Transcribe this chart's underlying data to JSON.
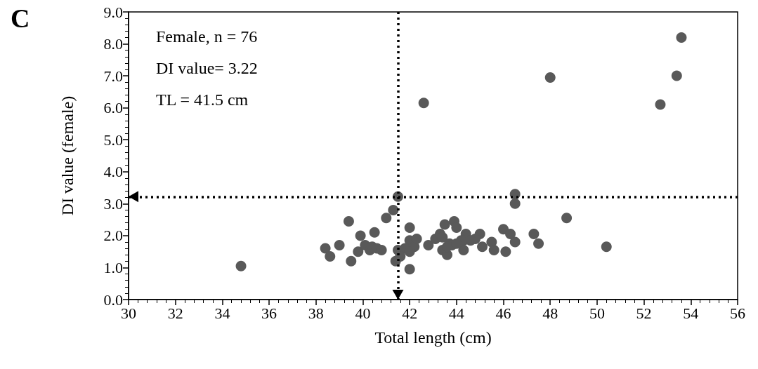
{
  "chart_data": {
    "type": "scatter",
    "title": "C",
    "xlabel": "Total length (cm)",
    "ylabel": "DI value (female)",
    "annotations": [
      "Female, n = 76",
      "DI value= 3.22",
      "TL = 41.5 cm"
    ],
    "x": [
      34.8,
      38.4,
      38.6,
      39.0,
      39.4,
      39.5,
      39.8,
      39.9,
      40.1,
      40.3,
      40.4,
      40.5,
      40.6,
      40.8,
      41.0,
      41.3,
      41.5,
      41.4,
      41.5,
      42.0,
      42.0,
      42.0,
      42.2,
      42.3,
      42.8,
      43.1,
      43.3,
      43.5,
      43.4,
      43.6,
      43.7,
      43.9,
      44.0,
      43.8,
      44.3,
      44.4,
      44.3,
      45.0,
      44.8,
      44.6,
      45.1,
      45.5,
      45.6,
      46.0,
      46.3,
      46.1,
      46.5,
      46.5,
      46.5,
      47.3,
      47.5,
      48.7,
      50.4,
      42.6,
      48.0,
      52.7,
      53.4,
      53.6,
      44.2,
      43.4,
      41.8,
      43.6,
      44.0,
      42.0,
      41.6
    ],
    "values": [
      1.05,
      1.6,
      1.35,
      1.7,
      2.45,
      1.2,
      1.5,
      2.0,
      1.7,
      1.55,
      1.65,
      2.1,
      1.6,
      1.55,
      2.55,
      2.8,
      3.22,
      1.2,
      1.55,
      2.25,
      1.85,
      0.95,
      1.65,
      1.9,
      1.7,
      1.9,
      2.05,
      2.35,
      1.55,
      1.4,
      1.75,
      2.45,
      2.25,
      1.7,
      1.55,
      2.05,
      1.85,
      2.05,
      1.9,
      1.85,
      1.65,
      1.8,
      1.55,
      2.2,
      2.05,
      1.5,
      3.3,
      3.0,
      1.8,
      2.05,
      1.75,
      2.55,
      1.65,
      6.15,
      6.95,
      6.1,
      7.0,
      8.2,
      1.85,
      1.95,
      1.6,
      1.65,
      1.75,
      1.5,
      1.35
    ],
    "color": "#595959",
    "marker": "circle",
    "xlim": [
      30,
      56
    ],
    "xticks": [
      30,
      32,
      34,
      36,
      38,
      40,
      42,
      44,
      46,
      48,
      50,
      52,
      54,
      56
    ],
    "ylim": [
      0,
      9
    ],
    "yticks": [
      {
        "value": 0,
        "label": "0.0"
      },
      {
        "value": 1,
        "label": "1.0"
      },
      {
        "value": 2,
        "label": "2.0"
      },
      {
        "value": 3,
        "label": "3.0"
      },
      {
        "value": 4,
        "label": "4.0"
      },
      {
        "value": 5,
        "label": "5.0"
      },
      {
        "value": 6,
        "label": "6.0"
      },
      {
        "value": 7,
        "label": "7.0"
      },
      {
        "value": 8,
        "label": "8.0"
      },
      {
        "value": 9,
        "label": "9.0"
      }
    ],
    "grid": false,
    "ref_lines": [
      {
        "axis": "x",
        "value": 41.5,
        "color": "#000000",
        "line_style": "dotted"
      },
      {
        "axis": "y",
        "value": 3.22,
        "color": "#000000",
        "line_style": "dotted"
      }
    ]
  }
}
